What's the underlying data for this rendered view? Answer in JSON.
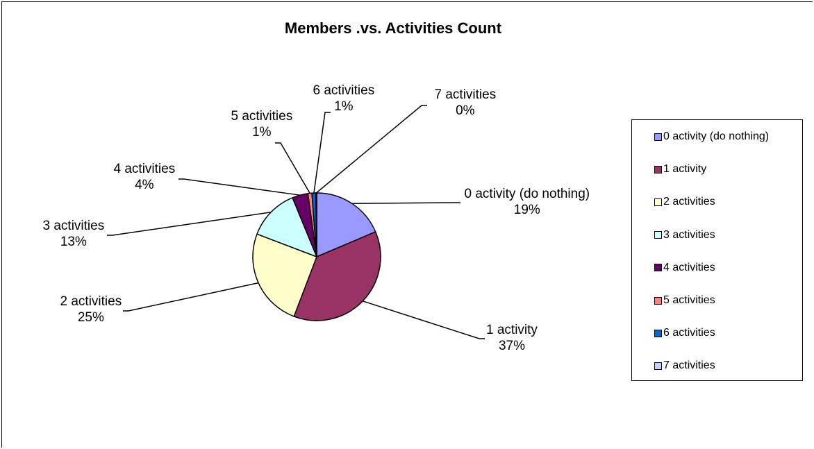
{
  "chart_data": {
    "type": "pie",
    "title": "Members .vs. Activities Count",
    "legend_position": "right",
    "slices": [
      {
        "label": "0 activity (do nothing)",
        "value": 18.6,
        "percent_label": "19%",
        "color": "#9999FF"
      },
      {
        "label": "1 activity",
        "value": 37.2,
        "percent_label": "37%",
        "color": "#993366"
      },
      {
        "label": "2 activities",
        "value": 25.0,
        "percent_label": "25%",
        "color": "#FFFFCC"
      },
      {
        "label": "3 activities",
        "value": 13.0,
        "percent_label": "13%",
        "color": "#CCFFFF"
      },
      {
        "label": "4 activities",
        "value": 4.0,
        "percent_label": "4%",
        "color": "#660066"
      },
      {
        "label": "5 activities",
        "value": 1.0,
        "percent_label": "1%",
        "color": "#FF8080"
      },
      {
        "label": "6 activities",
        "value": 1.0,
        "percent_label": "1%",
        "color": "#0066CC"
      },
      {
        "label": "7 activities",
        "value": 0.2,
        "percent_label": "0%",
        "color": "#CCCCFF"
      }
    ]
  }
}
